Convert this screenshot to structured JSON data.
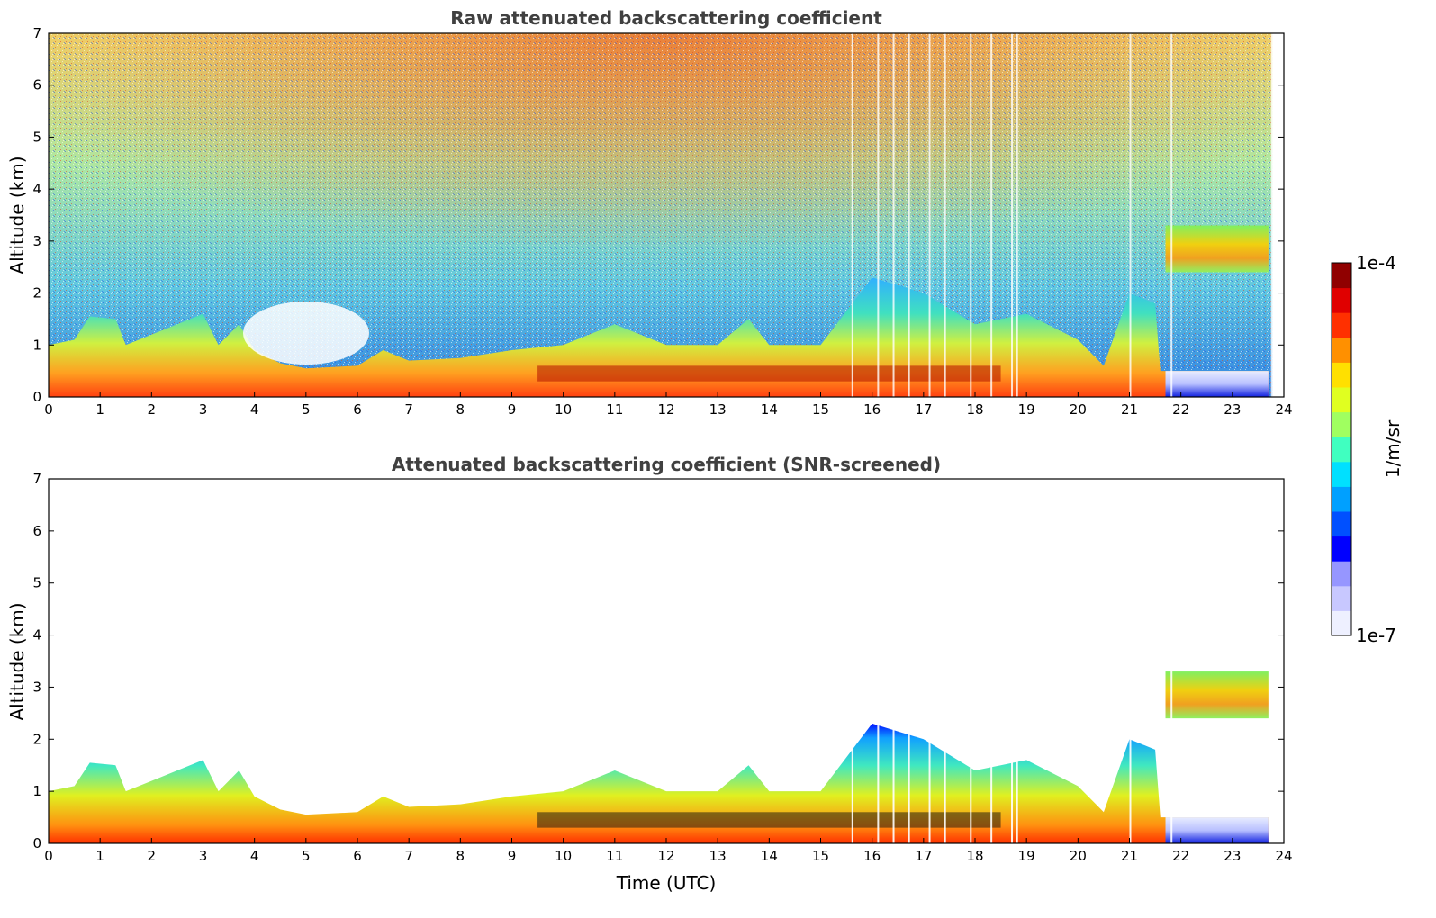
{
  "chart_data": [
    {
      "type": "heatmap",
      "title": "Raw attenuated backscattering coefficient",
      "xlabel": "",
      "ylabel": "Altitude (km)",
      "xlim": [
        0,
        24
      ],
      "ylim": [
        0,
        7
      ],
      "xticks": [
        "0",
        "1",
        "2",
        "3",
        "4",
        "5",
        "6",
        "7",
        "8",
        "9",
        "10",
        "11",
        "12",
        "13",
        "14",
        "15",
        "16",
        "17",
        "18",
        "19",
        "20",
        "21",
        "22",
        "23",
        "24"
      ],
      "yticks": [
        "0",
        "1",
        "2",
        "3",
        "4",
        "5",
        "6",
        "7"
      ],
      "boundary_layer_top_km": [
        [
          0,
          1.0
        ],
        [
          0.5,
          1.1
        ],
        [
          0.8,
          1.55
        ],
        [
          1.3,
          1.5
        ],
        [
          1.5,
          1.0
        ],
        [
          2,
          1.2
        ],
        [
          2.5,
          1.4
        ],
        [
          3,
          1.6
        ],
        [
          3.3,
          1.0
        ],
        [
          3.7,
          1.4
        ],
        [
          4,
          0.9
        ],
        [
          4.5,
          0.65
        ],
        [
          5,
          0.55
        ],
        [
          6,
          0.6
        ],
        [
          6.5,
          0.9
        ],
        [
          7,
          0.7
        ],
        [
          8,
          0.75
        ],
        [
          9,
          0.9
        ],
        [
          10,
          1.0
        ],
        [
          11,
          1.4
        ],
        [
          12,
          1.0
        ],
        [
          13,
          1.0
        ],
        [
          13.6,
          1.5
        ],
        [
          14,
          1.0
        ],
        [
          15,
          1.0
        ],
        [
          16,
          2.3
        ],
        [
          17,
          2.0
        ],
        [
          18,
          1.4
        ],
        [
          18.5,
          1.5
        ],
        [
          19,
          1.6
        ],
        [
          20,
          1.1
        ],
        [
          20.5,
          0.6
        ],
        [
          21,
          2.0
        ],
        [
          21.5,
          1.8
        ],
        [
          21.6,
          0.5
        ],
        [
          23.7,
          0.5
        ]
      ],
      "aerosol_layer_km": {
        "t_start": 9.5,
        "t_end": 18.5,
        "altitude_range": [
          0.3,
          0.6
        ]
      },
      "elevated_layer": {
        "t_start": 21.7,
        "t_end": 23.7,
        "altitude_range": [
          2.4,
          3.3
        ]
      }
    },
    {
      "type": "heatmap",
      "title": "Attenuated backscattering coefficient (SNR-screened)",
      "xlabel": "Time (UTC)",
      "ylabel": "Altitude (km)",
      "xlim": [
        0,
        24
      ],
      "ylim": [
        0,
        7
      ],
      "xticks": [
        "0",
        "1",
        "2",
        "3",
        "4",
        "5",
        "6",
        "7",
        "8",
        "9",
        "10",
        "11",
        "12",
        "13",
        "14",
        "15",
        "16",
        "17",
        "18",
        "19",
        "20",
        "21",
        "22",
        "23",
        "24"
      ],
      "yticks": [
        "0",
        "1",
        "2",
        "3",
        "4",
        "5",
        "6",
        "7"
      ],
      "screened_above_boundary_layer": true
    }
  ],
  "colorbar": {
    "label": "1/m/sr",
    "max_label": "1e-4",
    "min_label": "1e-7",
    "vmin": 1e-07,
    "vmax": 0.0001,
    "scale": "log",
    "colors": [
      "#eef0ff",
      "#c8c8ff",
      "#9696ff",
      "#0000ff",
      "#0050ff",
      "#00a0ff",
      "#00e0ff",
      "#40ffc0",
      "#a0ff60",
      "#e0ff20",
      "#ffe000",
      "#ff9000",
      "#ff3000",
      "#e00000",
      "#900000"
    ]
  }
}
